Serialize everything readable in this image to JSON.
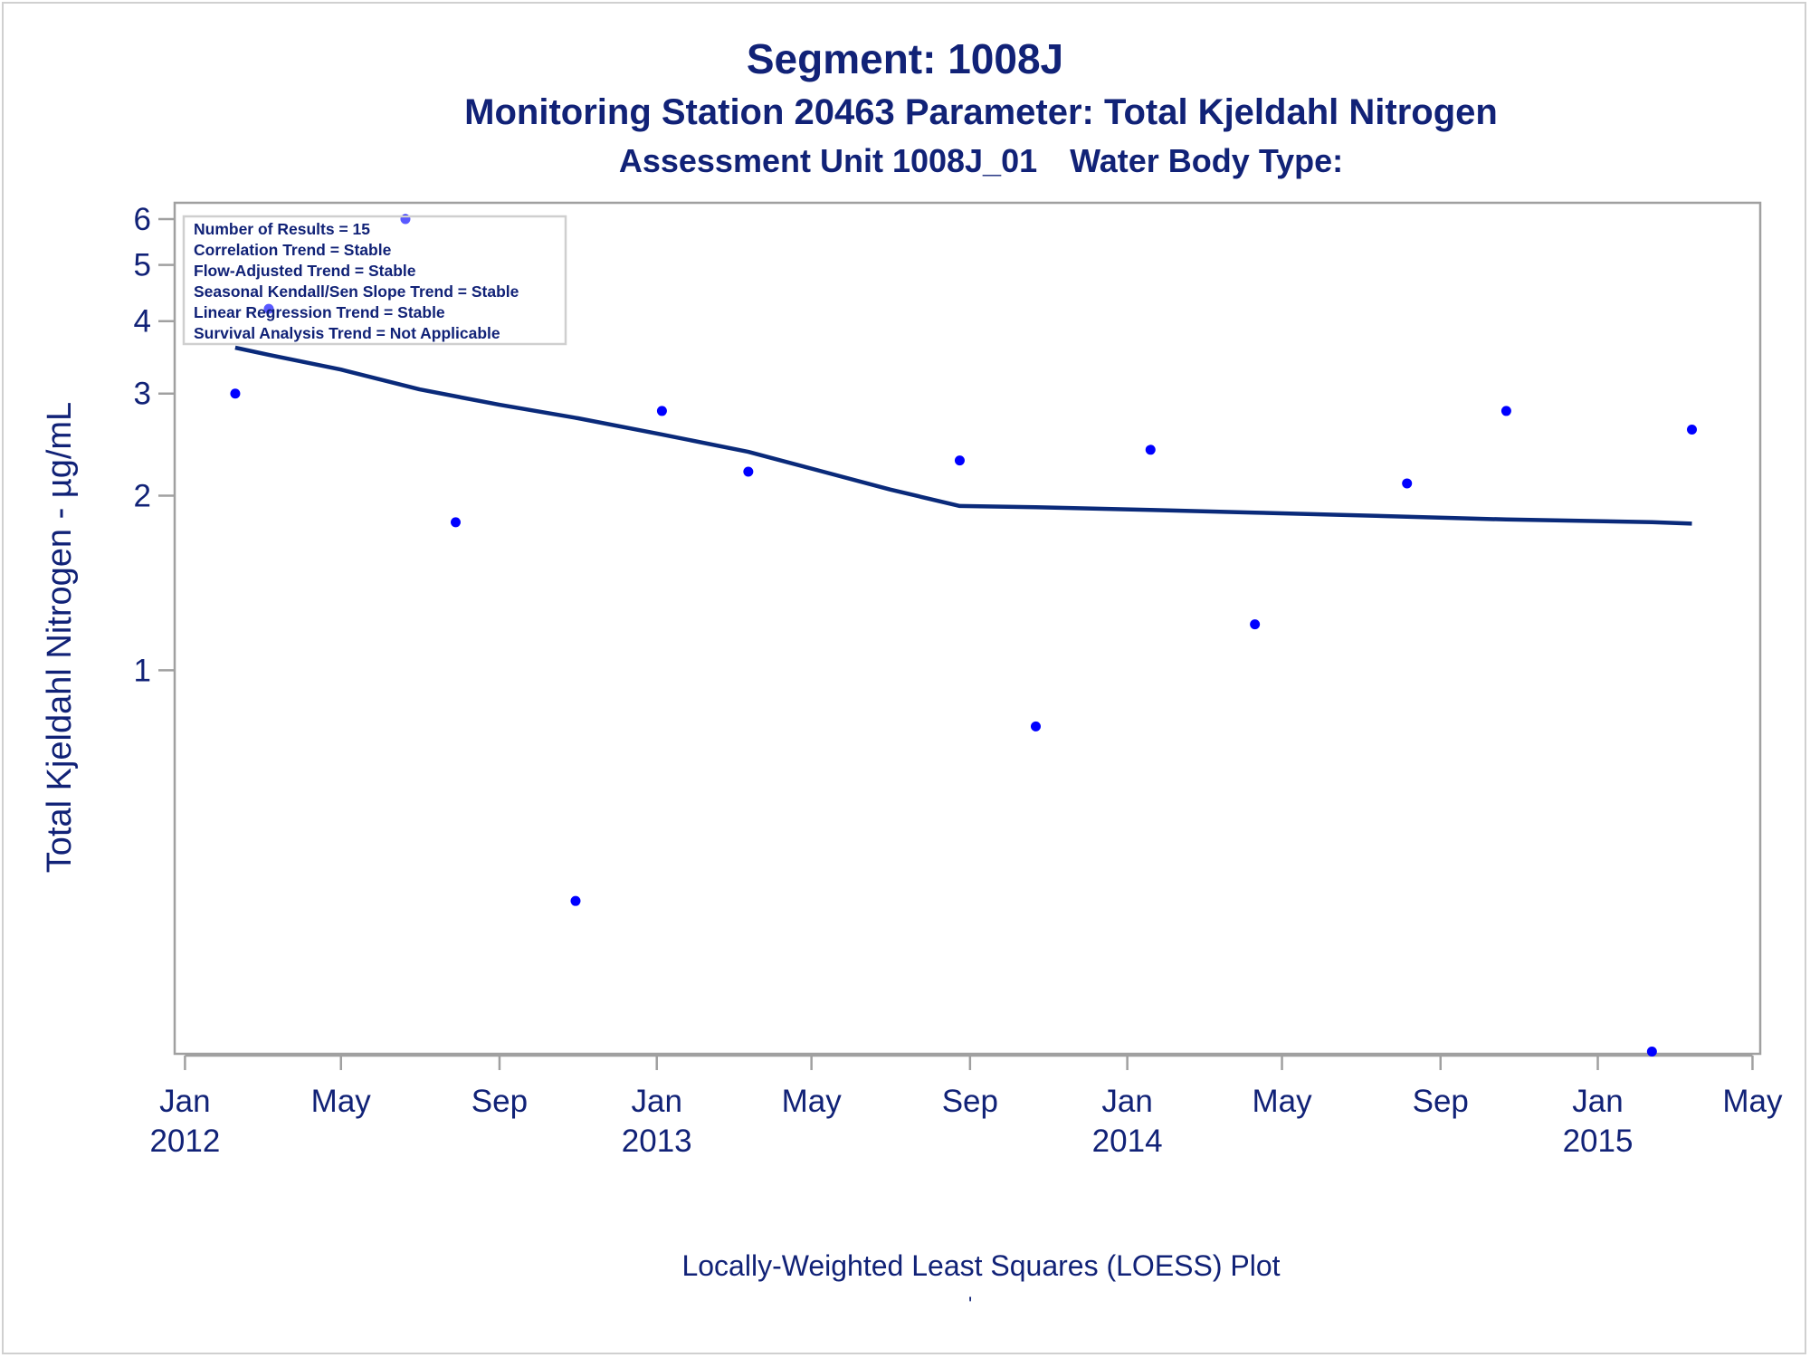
{
  "titles": {
    "line1": "Segment: 1008J",
    "line2": "Monitoring Station 20463 Parameter: Total Kjeldahl Nitrogen",
    "line3_a": "Assessment Unit 1008J_01",
    "line3_b": "Water Body Type:"
  },
  "footnote": "Locally-Weighted Least Squares (LOESS) Plot",
  "footmark": "'",
  "colors": {
    "text": "#112277",
    "points": "#0000ff",
    "line": "#0a2a7a",
    "frame": "#a0a0a0"
  },
  "chart_data": {
    "type": "scatter",
    "title": "Segment: 1008J",
    "xlabel": "",
    "ylabel": "Total Kjeldahl Nitrogen -  µg/mL",
    "yscale": "log",
    "ylim": [
      0.218,
      6.4
    ],
    "xlim": [
      "2011-12-24",
      "2015-05-07"
    ],
    "grid": false,
    "x_ticks": [
      {
        "date": "2012-01-01",
        "month": "Jan",
        "year": "2012"
      },
      {
        "date": "2012-05-01",
        "month": "May",
        "year": ""
      },
      {
        "date": "2012-09-01",
        "month": "Sep",
        "year": ""
      },
      {
        "date": "2013-01-01",
        "month": "Jan",
        "year": "2013"
      },
      {
        "date": "2013-05-01",
        "month": "May",
        "year": ""
      },
      {
        "date": "2013-09-01",
        "month": "Sep",
        "year": ""
      },
      {
        "date": "2014-01-01",
        "month": "Jan",
        "year": "2014"
      },
      {
        "date": "2014-05-01",
        "month": "May",
        "year": ""
      },
      {
        "date": "2014-09-01",
        "month": "Sep",
        "year": ""
      },
      {
        "date": "2015-01-01",
        "month": "Jan",
        "year": "2015"
      },
      {
        "date": "2015-05-01",
        "month": "May",
        "year": ""
      }
    ],
    "y_ticks": [
      {
        "value": 1,
        "label": "1"
      },
      {
        "value": 2,
        "label": "2"
      },
      {
        "value": 3,
        "label": "3"
      },
      {
        "value": 4,
        "label": "4"
      },
      {
        "value": 5,
        "label": "5"
      },
      {
        "value": 6,
        "label": "6"
      }
    ],
    "series": [
      {
        "type": "scatter",
        "points": [
          {
            "x": "2012-02-09",
            "y": 3.0
          },
          {
            "x": "2012-03-06",
            "y": 4.2
          },
          {
            "x": "2012-06-20",
            "y": 6.0
          },
          {
            "x": "2012-07-29",
            "y": 1.8
          },
          {
            "x": "2012-10-30",
            "y": 0.4
          },
          {
            "x": "2013-01-05",
            "y": 2.8
          },
          {
            "x": "2013-03-13",
            "y": 2.2
          },
          {
            "x": "2013-08-24",
            "y": 2.3
          },
          {
            "x": "2013-10-22",
            "y": 0.8
          },
          {
            "x": "2014-01-19",
            "y": 2.4
          },
          {
            "x": "2014-04-10",
            "y": 1.2
          },
          {
            "x": "2014-08-06",
            "y": 2.1
          },
          {
            "x": "2014-10-22",
            "y": 2.8
          },
          {
            "x": "2015-02-12",
            "y": 0.22
          },
          {
            "x": "2015-03-15",
            "y": 2.6
          }
        ]
      },
      {
        "type": "line",
        "points": [
          {
            "x": "2012-02-09",
            "y": 3.6
          },
          {
            "x": "2012-03-06",
            "y": 3.5
          },
          {
            "x": "2012-05-01",
            "y": 3.3
          },
          {
            "x": "2012-07-01",
            "y": 3.05
          },
          {
            "x": "2012-09-01",
            "y": 2.87
          },
          {
            "x": "2012-11-01",
            "y": 2.72
          },
          {
            "x": "2013-01-05",
            "y": 2.55
          },
          {
            "x": "2013-03-13",
            "y": 2.38
          },
          {
            "x": "2013-05-10",
            "y": 2.2
          },
          {
            "x": "2013-07-01",
            "y": 2.05
          },
          {
            "x": "2013-08-24",
            "y": 1.92
          },
          {
            "x": "2013-10-22",
            "y": 1.91
          },
          {
            "x": "2014-01-19",
            "y": 1.89
          },
          {
            "x": "2014-04-10",
            "y": 1.87
          },
          {
            "x": "2014-08-06",
            "y": 1.84
          },
          {
            "x": "2014-10-22",
            "y": 1.82
          },
          {
            "x": "2015-02-12",
            "y": 1.8
          },
          {
            "x": "2015-03-15",
            "y": 1.79
          }
        ]
      }
    ],
    "legend": {
      "placement": "top-left",
      "lines": [
        "Number of Results = 15",
        "Correlation Trend = Stable",
        "Flow-Adjusted Trend = Stable",
        "Seasonal Kendall/Sen Slope Trend = Stable",
        "Linear Regression Trend = Stable",
        "Survival Analysis Trend = Not Applicable"
      ]
    }
  }
}
